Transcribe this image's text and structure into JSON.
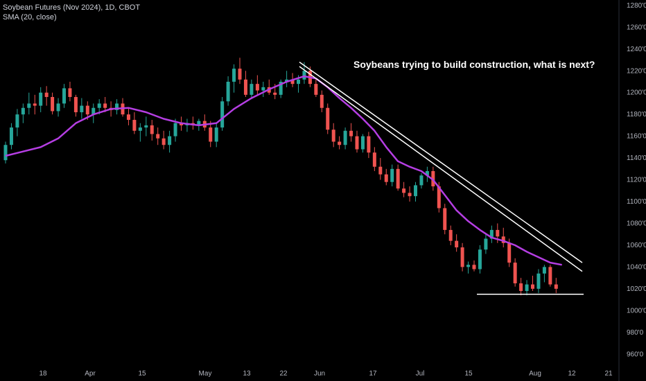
{
  "legend": {
    "symbol": "Soybean Futures (Nov 2024), 1D, CBOT",
    "indicator": "SMA (20, close)"
  },
  "annotation": "Soybeans trying to build construction, what is next?",
  "colors": {
    "up": "#26a69a",
    "down": "#ef5350",
    "sma": "#b53ee3",
    "lines": "#ffffff",
    "background": "#000000"
  },
  "chart_data": {
    "type": "candlestick",
    "y_range": [
      950,
      1285
    ],
    "y_ticks": [
      "1280'0",
      "1260'0",
      "1240'0",
      "1220'0",
      "1200'0",
      "1180'0",
      "1160'0",
      "1140'0",
      "1120'0",
      "1100'0",
      "1080'0",
      "1060'0",
      "1040'0",
      "1020'0",
      "1000'0",
      "980'0",
      "960'0"
    ],
    "x_ticks": [
      "18",
      "Apr",
      "15",
      "May",
      "13",
      "22",
      "Jun",
      "17",
      "Jul",
      "15",
      "Aug",
      "12",
      "21"
    ],
    "candles": [
      [
        1138,
        1155,
        1135,
        1152
      ],
      [
        1152,
        1172,
        1148,
        1168
      ],
      [
        1168,
        1185,
        1160,
        1180
      ],
      [
        1180,
        1190,
        1172,
        1186
      ],
      [
        1186,
        1200,
        1180,
        1190
      ],
      [
        1190,
        1198,
        1180,
        1188
      ],
      [
        1188,
        1205,
        1182,
        1200
      ],
      [
        1200,
        1206,
        1188,
        1196
      ],
      [
        1196,
        1200,
        1180,
        1183
      ],
      [
        1183,
        1195,
        1178,
        1190
      ],
      [
        1190,
        1208,
        1186,
        1204
      ],
      [
        1204,
        1210,
        1192,
        1196
      ],
      [
        1196,
        1198,
        1178,
        1182
      ],
      [
        1182,
        1195,
        1176,
        1188
      ],
      [
        1188,
        1192,
        1175,
        1180
      ],
      [
        1180,
        1190,
        1172,
        1186
      ],
      [
        1186,
        1194,
        1180,
        1190
      ],
      [
        1190,
        1196,
        1182,
        1186
      ],
      [
        1186,
        1192,
        1178,
        1184
      ],
      [
        1184,
        1194,
        1180,
        1190
      ],
      [
        1190,
        1195,
        1178,
        1180
      ],
      [
        1180,
        1186,
        1170,
        1175
      ],
      [
        1175,
        1182,
        1162,
        1165
      ],
      [
        1165,
        1172,
        1155,
        1168
      ],
      [
        1168,
        1178,
        1160,
        1170
      ],
      [
        1170,
        1175,
        1156,
        1162
      ],
      [
        1162,
        1168,
        1152,
        1158
      ],
      [
        1158,
        1165,
        1148,
        1152
      ],
      [
        1152,
        1165,
        1145,
        1160
      ],
      [
        1160,
        1176,
        1155,
        1172
      ],
      [
        1172,
        1178,
        1165,
        1170
      ],
      [
        1170,
        1176,
        1164,
        1172
      ],
      [
        1172,
        1178,
        1166,
        1170
      ],
      [
        1170,
        1176,
        1165,
        1174
      ],
      [
        1174,
        1180,
        1165,
        1168
      ],
      [
        1168,
        1174,
        1150,
        1155
      ],
      [
        1155,
        1172,
        1150,
        1168
      ],
      [
        1168,
        1196,
        1165,
        1192
      ],
      [
        1192,
        1215,
        1188,
        1210
      ],
      [
        1210,
        1226,
        1200,
        1222
      ],
      [
        1222,
        1232,
        1208,
        1212
      ],
      [
        1212,
        1220,
        1196,
        1198
      ],
      [
        1198,
        1212,
        1194,
        1208
      ],
      [
        1208,
        1216,
        1198,
        1202
      ],
      [
        1202,
        1210,
        1196,
        1205
      ],
      [
        1205,
        1212,
        1198,
        1200
      ],
      [
        1200,
        1208,
        1194,
        1198
      ],
      [
        1198,
        1212,
        1195,
        1210
      ],
      [
        1210,
        1220,
        1205,
        1212
      ],
      [
        1212,
        1218,
        1205,
        1208
      ],
      [
        1208,
        1216,
        1200,
        1212
      ],
      [
        1212,
        1228,
        1208,
        1220
      ],
      [
        1220,
        1224,
        1205,
        1208
      ],
      [
        1208,
        1212,
        1196,
        1198
      ],
      [
        1198,
        1202,
        1182,
        1186
      ],
      [
        1186,
        1190,
        1162,
        1166
      ],
      [
        1166,
        1172,
        1150,
        1155
      ],
      [
        1155,
        1160,
        1148,
        1152
      ],
      [
        1152,
        1168,
        1148,
        1165
      ],
      [
        1165,
        1172,
        1155,
        1160
      ],
      [
        1160,
        1165,
        1145,
        1148
      ],
      [
        1148,
        1162,
        1145,
        1160
      ],
      [
        1160,
        1164,
        1140,
        1145
      ],
      [
        1145,
        1150,
        1128,
        1132
      ],
      [
        1132,
        1140,
        1120,
        1125
      ],
      [
        1125,
        1130,
        1115,
        1118
      ],
      [
        1118,
        1134,
        1114,
        1130
      ],
      [
        1130,
        1134,
        1110,
        1112
      ],
      [
        1112,
        1118,
        1104,
        1108
      ],
      [
        1108,
        1114,
        1100,
        1105
      ],
      [
        1105,
        1118,
        1100,
        1115
      ],
      [
        1115,
        1126,
        1112,
        1124
      ],
      [
        1124,
        1132,
        1118,
        1128
      ],
      [
        1128,
        1132,
        1110,
        1114
      ],
      [
        1114,
        1118,
        1090,
        1094
      ],
      [
        1094,
        1098,
        1070,
        1074
      ],
      [
        1074,
        1078,
        1060,
        1064
      ],
      [
        1064,
        1070,
        1054,
        1058
      ],
      [
        1058,
        1062,
        1036,
        1040
      ],
      [
        1040,
        1045,
        1034,
        1042
      ],
      [
        1042,
        1046,
        1036,
        1038
      ],
      [
        1038,
        1060,
        1034,
        1056
      ],
      [
        1056,
        1070,
        1052,
        1066
      ],
      [
        1066,
        1078,
        1062,
        1074
      ],
      [
        1074,
        1080,
        1062,
        1068
      ],
      [
        1068,
        1076,
        1058,
        1062
      ],
      [
        1062,
        1066,
        1040,
        1044
      ],
      [
        1044,
        1048,
        1022,
        1025
      ],
      [
        1025,
        1030,
        1014,
        1018
      ],
      [
        1018,
        1028,
        1014,
        1024
      ],
      [
        1024,
        1032,
        1018,
        1020
      ],
      [
        1020,
        1038,
        1016,
        1034
      ],
      [
        1034,
        1042,
        1026,
        1040
      ],
      [
        1040,
        1042,
        1022,
        1024
      ],
      [
        1024,
        1030,
        1016,
        1020
      ]
    ],
    "sma_20": [
      [
        0,
        1142
      ],
      [
        3,
        1146
      ],
      [
        6,
        1150
      ],
      [
        9,
        1158
      ],
      [
        12,
        1172
      ],
      [
        15,
        1180
      ],
      [
        18,
        1185
      ],
      [
        21,
        1186
      ],
      [
        24,
        1182
      ],
      [
        27,
        1176
      ],
      [
        30,
        1172
      ],
      [
        33,
        1170
      ],
      [
        36,
        1172
      ],
      [
        39,
        1185
      ],
      [
        42,
        1195
      ],
      [
        45,
        1203
      ],
      [
        48,
        1210
      ],
      [
        51,
        1215
      ],
      [
        53,
        1213
      ],
      [
        55,
        1205
      ],
      [
        57,
        1195
      ],
      [
        59,
        1186
      ],
      [
        61,
        1176
      ],
      [
        63,
        1165
      ],
      [
        65,
        1150
      ],
      [
        67,
        1137
      ],
      [
        69,
        1132
      ],
      [
        71,
        1128
      ],
      [
        73,
        1120
      ],
      [
        75,
        1106
      ],
      [
        77,
        1092
      ],
      [
        79,
        1082
      ],
      [
        81,
        1074
      ],
      [
        83,
        1067
      ],
      [
        85,
        1064
      ],
      [
        87,
        1060
      ],
      [
        89,
        1054
      ],
      [
        91,
        1049
      ],
      [
        93,
        1044
      ],
      [
        95,
        1042
      ]
    ],
    "trendlines": [
      [
        [
          0,
          1228
        ],
        [
          1,
          1044
        ]
      ],
      [
        [
          0,
          1224
        ],
        [
          1,
          1036
        ]
      ]
    ],
    "support": 1015
  }
}
